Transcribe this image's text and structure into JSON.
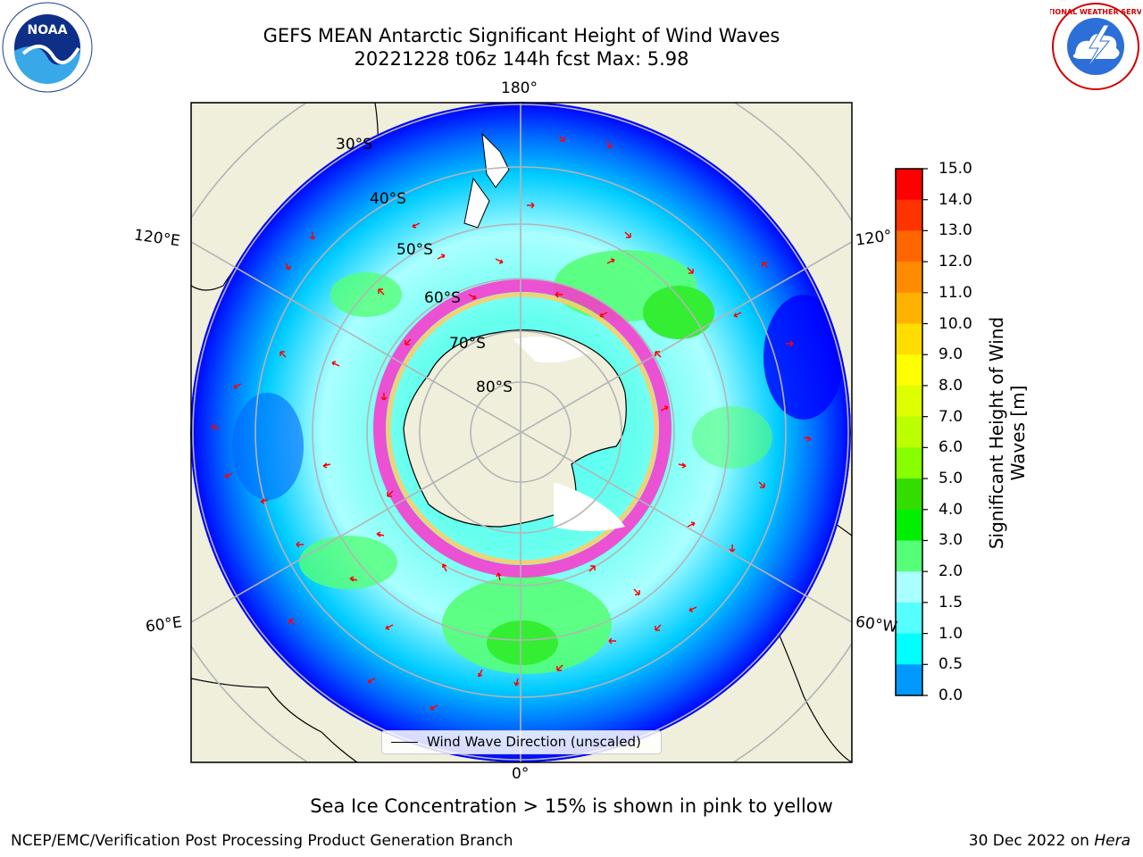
{
  "header": {
    "title_line1": "GEFS MEAN Antarctic Significant Height of Wind Waves",
    "title_line2": "20221228 t06z 144h fcst   Max: 5.98"
  },
  "logos": {
    "left": {
      "name": "noaa-logo",
      "text": "NOAA"
    },
    "right": {
      "name": "national-weather-service-logo",
      "text": "NATIONAL WEATHER SERVICE"
    }
  },
  "map": {
    "projection": "south-polar-stereographic",
    "latitude_labels": [
      "30°S",
      "40°S",
      "50°S",
      "60°S",
      "70°S",
      "80°S"
    ],
    "longitude_labels": {
      "top": "180°",
      "bottom": "0°",
      "upper_left": "120°E",
      "upper_right": "120°",
      "lower_left": "60°E",
      "lower_right": "60°W"
    },
    "colors": {
      "land": "#efefdc",
      "coastline": "#000000",
      "grid": "#b4b4b4",
      "arrow": "#ff0000",
      "sea_ice_low": "#ff33cc",
      "sea_ice_high": "#ffcc66"
    }
  },
  "colorbar": {
    "label_line1": "Significant Height of Wind",
    "label_line2": "Waves [m]",
    "ticks": [
      "15.0",
      "14.0",
      "13.0",
      "12.0",
      "11.0",
      "10.0",
      "9.0",
      "8.0",
      "7.0",
      "6.0",
      "5.0",
      "4.0",
      "3.0",
      "2.0",
      "1.5",
      "1.0",
      "0.5",
      "0.0"
    ],
    "colors": [
      "#ff0000",
      "#ff3300",
      "#ff6600",
      "#ff8c00",
      "#ffb300",
      "#ffdd00",
      "#ffff00",
      "#ddff00",
      "#bbff00",
      "#88ff00",
      "#33dd00",
      "#00ee00",
      "#55ff77",
      "#aaffff",
      "#55ffff",
      "#00ffff",
      "#0099ff",
      "#0066ff",
      "#0000ff"
    ]
  },
  "legend": {
    "label": "Wind Wave Direction (unscaled)"
  },
  "footer": {
    "ice_note": "Sea Ice Concentration > 15% is shown in pink to yellow",
    "left": "NCEP/EMC/Verification Post Processing Product Generation Branch",
    "right_prefix": "30 Dec 2022 on ",
    "right_machine": "Hera"
  }
}
